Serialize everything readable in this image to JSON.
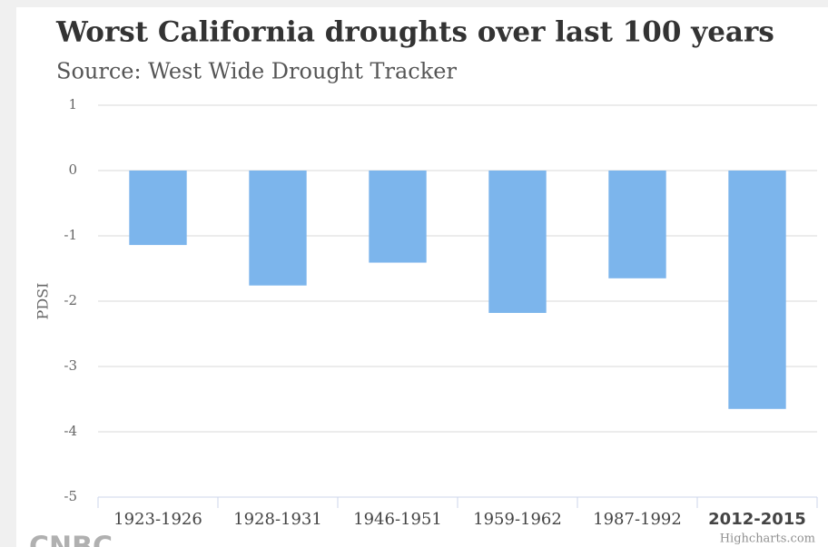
{
  "chart_data": {
    "type": "bar",
    "title": "Worst California droughts over last 100 years",
    "subtitle": "Source: West Wide Drought Tracker",
    "y_axis_label": "PDSI",
    "categories": [
      "1923-1926",
      "1928-1931",
      "1946-1951",
      "1959-1962",
      "1987-1992",
      "2012-2015"
    ],
    "values": [
      -1.14,
      -1.76,
      -1.41,
      -2.18,
      -1.65,
      -3.65
    ],
    "color": "#7cb5ec",
    "ylim": [
      -5,
      1
    ],
    "yticks": [
      -5,
      -4,
      -3,
      -2,
      -1,
      0,
      1
    ],
    "grid": true,
    "highlighted_category_index": 5,
    "credits": "Highcharts.com",
    "logo": "CNBC"
  }
}
